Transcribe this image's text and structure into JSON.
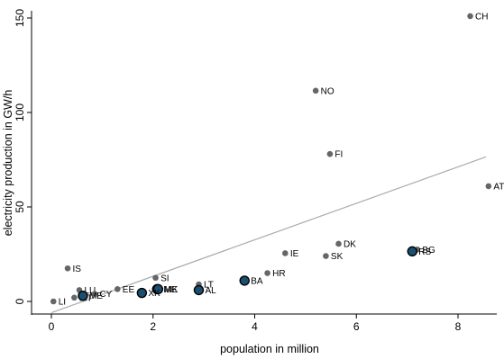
{
  "chart_data": {
    "type": "scatter",
    "title": "",
    "xlabel": "population in million",
    "ylabel": "electricity production in GW/h",
    "xlim": [
      -0.2,
      8.6
    ],
    "ylim": [
      -6,
      155
    ],
    "xticks": [
      "0",
      "2",
      "4",
      "6",
      "8"
    ],
    "yticks": [
      "0",
      "50",
      "100",
      "150"
    ],
    "grid": false,
    "legend": "none",
    "colors": {
      "point_fill": "#666666",
      "highlight_fill": "#1b4f72",
      "highlight_stroke": "#000000",
      "fit_line": "#aaaaaa",
      "axis": "#000000"
    },
    "fit_line": {
      "x": [
        0.0,
        8.55
      ],
      "y": [
        -6.0,
        76.5
      ]
    },
    "points": [
      {
        "label": "CH",
        "x": 8.24,
        "y": 151.0,
        "highlight": false
      },
      {
        "label": "NO",
        "x": 5.2,
        "y": 111.5,
        "highlight": false
      },
      {
        "label": "FI",
        "x": 5.48,
        "y": 78.0,
        "highlight": false
      },
      {
        "label": "AT",
        "x": 8.6,
        "y": 61.0,
        "highlight": false
      },
      {
        "label": "DK",
        "x": 5.65,
        "y": 30.5,
        "highlight": false
      },
      {
        "label": "BG",
        "x": 7.2,
        "y": 27.5,
        "highlight": false
      },
      {
        "label": "RS",
        "x": 7.1,
        "y": 26.5,
        "highlight": true
      },
      {
        "label": "IE",
        "x": 4.6,
        "y": 25.5,
        "highlight": false
      },
      {
        "label": "SK",
        "x": 5.4,
        "y": 24.0,
        "highlight": false
      },
      {
        "label": "IS",
        "x": 0.32,
        "y": 17.5,
        "highlight": false
      },
      {
        "label": "HR",
        "x": 4.25,
        "y": 15.0,
        "highlight": false
      },
      {
        "label": "SI",
        "x": 2.05,
        "y": 12.5,
        "highlight": false
      },
      {
        "label": "BA",
        "x": 3.8,
        "y": 11.0,
        "highlight": true
      },
      {
        "label": "LT",
        "x": 2.9,
        "y": 9.0,
        "highlight": false
      },
      {
        "label": "EE",
        "x": 1.3,
        "y": 6.5,
        "highlight": false
      },
      {
        "label": "LU",
        "x": 0.55,
        "y": 6.0,
        "highlight": false
      },
      {
        "label": "ME",
        "x": 2.08,
        "y": 6.5,
        "highlight": true
      },
      {
        "label": "MK",
        "x": 2.1,
        "y": 6.5,
        "highlight": true
      },
      {
        "label": "AL",
        "x": 2.9,
        "y": 6.0,
        "highlight": true
      },
      {
        "label": "XK",
        "x": 1.78,
        "y": 4.5,
        "highlight": true
      },
      {
        "label": "CY",
        "x": 0.85,
        "y": 4.0,
        "highlight": false
      },
      {
        "label": "MT",
        "x": 0.45,
        "y": 2.0,
        "highlight": false
      },
      {
        "label": "ME",
        "x": 0.62,
        "y": 3.0,
        "highlight": true
      },
      {
        "label": "LI",
        "x": 0.04,
        "y": 0.0,
        "highlight": false
      }
    ]
  }
}
